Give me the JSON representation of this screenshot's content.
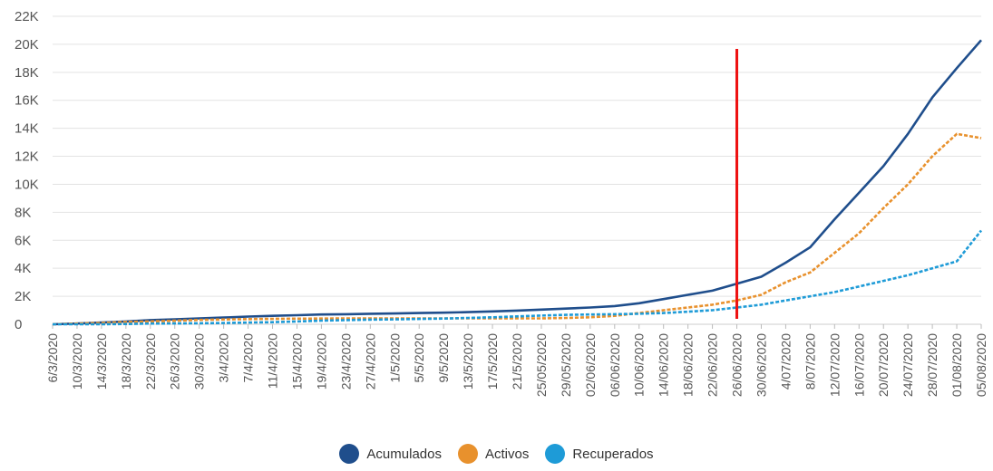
{
  "chart_data": {
    "type": "line",
    "title": "",
    "xlabel": "",
    "ylabel": "",
    "ylim": [
      0,
      22000
    ],
    "yticks": [
      {
        "value": 0,
        "label": "0"
      },
      {
        "value": 2000,
        "label": "2K"
      },
      {
        "value": 4000,
        "label": "4K"
      },
      {
        "value": 6000,
        "label": "6K"
      },
      {
        "value": 8000,
        "label": "8K"
      },
      {
        "value": 10000,
        "label": "10K"
      },
      {
        "value": 12000,
        "label": "12K"
      },
      {
        "value": 14000,
        "label": "14K"
      },
      {
        "value": 16000,
        "label": "16K"
      },
      {
        "value": 18000,
        "label": "18K"
      },
      {
        "value": 20000,
        "label": "20K"
      },
      {
        "value": 22000,
        "label": "22K"
      }
    ],
    "categories": [
      "6/3/2020",
      "10/3/2020",
      "14/3/2020",
      "18/3/2020",
      "22/3/2020",
      "26/3/2020",
      "30/3/2020",
      "3/4/2020",
      "7/4/2020",
      "11/4/2020",
      "15/4/2020",
      "19/4/2020",
      "23/4/2020",
      "27/4/2020",
      "1/5/2020",
      "5/5/2020",
      "9/5/2020",
      "13/5/2020",
      "17/5/2020",
      "21/5/2020",
      "25/05/2020",
      "29/05/2020",
      "02/06/2020",
      "06/06/2020",
      "10/06/2020",
      "14/06/2020",
      "18/06/2020",
      "22/06/2020",
      "26/06/2020",
      "30/06/2020",
      "4/07/2020",
      "8/07/2020",
      "12/07/2020",
      "16/07/2020",
      "20/07/2020",
      "24/07/2020",
      "28/07/2020",
      "01/08/2020",
      "05/08/2020"
    ],
    "grid": true,
    "legend_position": "bottom-center",
    "marker": {
      "category": "26/06/2020",
      "color": "#ee1111"
    },
    "series": [
      {
        "name": "Acumulados",
        "color": "#1f4e8c",
        "style": "solid",
        "values": [
          0,
          50,
          120,
          200,
          300,
          350,
          420,
          480,
          550,
          600,
          650,
          700,
          720,
          750,
          770,
          800,
          830,
          870,
          920,
          980,
          1050,
          1120,
          1200,
          1300,
          1500,
          1800,
          2100,
          2400,
          2900,
          3400,
          4400,
          5500,
          7500,
          9400,
          11300,
          13600,
          16200,
          18300,
          20300
        ]
      },
      {
        "name": "Activos",
        "color": "#e8912d",
        "style": "dashed",
        "values": [
          0,
          50,
          100,
          160,
          200,
          250,
          310,
          340,
          370,
          390,
          400,
          410,
          420,
          420,
          420,
          420,
          420,
          420,
          420,
          420,
          420,
          450,
          500,
          600,
          800,
          1000,
          1200,
          1400,
          1700,
          2100,
          3000,
          3700,
          5100,
          6500,
          8300,
          10000,
          12000,
          13600,
          13300
        ]
      },
      {
        "name": "Recuperados",
        "color": "#1e9bd7",
        "style": "dashed",
        "values": [
          0,
          0,
          0,
          20,
          50,
          60,
          70,
          90,
          120,
          150,
          200,
          260,
          300,
          330,
          350,
          380,
          410,
          450,
          500,
          560,
          620,
          670,
          700,
          720,
          750,
          800,
          900,
          1000,
          1200,
          1400,
          1700,
          2000,
          2300,
          2700,
          3100,
          3500,
          4000,
          4500,
          6700
        ]
      }
    ]
  }
}
